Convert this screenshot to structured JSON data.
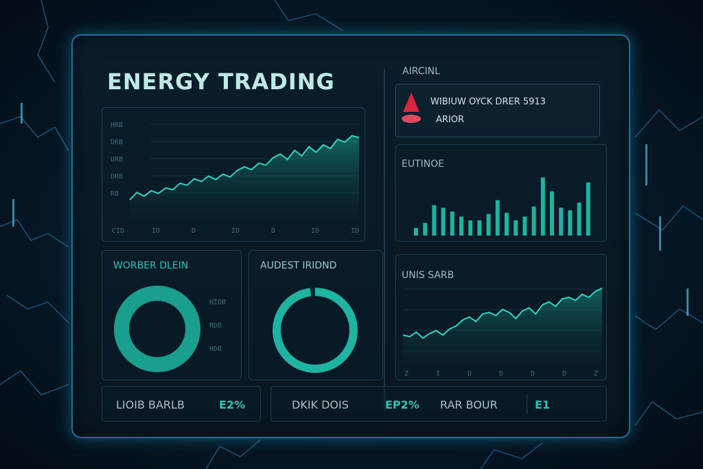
{
  "header": {
    "title": "ENERGY TRADING"
  },
  "main_chart": {
    "y_ticks": [
      "HRB",
      "DRB",
      "URB",
      "DRB",
      "RB"
    ],
    "x_ticks": [
      "CID",
      "ID",
      "D",
      "ID",
      "D",
      "ID",
      "ID"
    ],
    "values": [
      12,
      20,
      16,
      22,
      19,
      25,
      23,
      30,
      28,
      35,
      32,
      38,
      34,
      40,
      37,
      44,
      48,
      45,
      52,
      50,
      58,
      62,
      56,
      66,
      60,
      70,
      64,
      72,
      68,
      78,
      75,
      82,
      80
    ]
  },
  "alert": {
    "section_label": "AIRCINL",
    "line1": "WIBIUW OYCK DRER 5913",
    "line2": "ARIOR"
  },
  "bar_panel": {
    "label": "EUTINOE",
    "values": [
      12,
      20,
      48,
      44,
      38,
      30,
      24,
      24,
      34,
      56,
      36,
      24,
      30,
      46,
      92,
      70,
      44,
      40,
      52,
      84
    ]
  },
  "donut_left": {
    "label": "WORBER DLEIN",
    "legend": [
      "HIDB",
      "RDB",
      "HDB"
    ],
    "fill": 1.0
  },
  "donut_right": {
    "label": "AUDEST IRIDND",
    "fill": 0.98
  },
  "line_panel": {
    "label": "UNIS SARB",
    "x_ticks": [
      "Z",
      "I",
      "D",
      "D",
      "D",
      "D",
      "Z"
    ],
    "values": [
      30,
      28,
      34,
      26,
      32,
      36,
      30,
      38,
      42,
      50,
      54,
      48,
      58,
      60,
      56,
      64,
      60,
      52,
      62,
      66,
      58,
      70,
      74,
      68,
      78,
      80,
      76,
      84,
      80,
      88,
      92
    ]
  },
  "stats": {
    "a_label": "LIOIB BARLB",
    "a_value": "E2%",
    "b_label": "DKIK DOIS",
    "b_value": "EP2%",
    "c_label": "RAR BOUR",
    "c_value": "E1"
  },
  "colors": {
    "accent": "#2ec4b2",
    "alert": "#e0304a",
    "border": "#1f6f9a"
  }
}
